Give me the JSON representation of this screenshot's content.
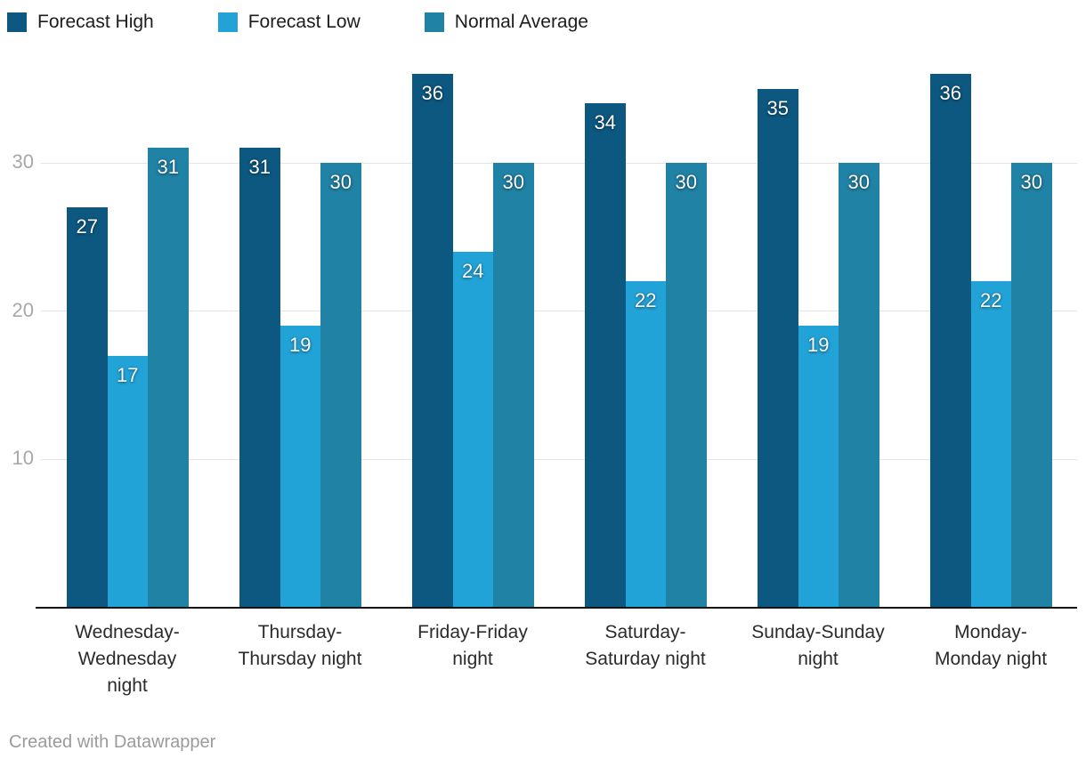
{
  "chart_data": {
    "type": "bar",
    "categories": [
      "Wednesday-\nWednesday\nnight",
      "Thursday-\nThursday night",
      "Friday-Friday\nnight",
      "Saturday-\nSaturday night",
      "Sunday-Sunday\nnight",
      "Monday-\nMonday night"
    ],
    "series": [
      {
        "name": "Forecast High",
        "color": "#0d5880",
        "values": [
          27,
          31,
          36,
          34,
          35,
          36
        ]
      },
      {
        "name": "Forecast Low",
        "color": "#22a3d8",
        "values": [
          17,
          19,
          24,
          22,
          19,
          22
        ]
      },
      {
        "name": "Normal Average",
        "color": "#2082a5",
        "values": [
          31,
          30,
          30,
          30,
          30,
          30
        ]
      }
    ],
    "y_ticks": [
      10,
      20,
      30
    ],
    "ylim": [
      0,
      41
    ],
    "grid": true,
    "legend_position": "top-left",
    "value_labels_shown": true
  },
  "colors": {
    "gridline": "#e4e4e4",
    "axis_line": "#141414",
    "tick_label": "#a8a8a8",
    "category_label": "#2b2b2b",
    "value_label": "#ffffff",
    "legend_label": "#1d1d1d",
    "footer_text": "#9b9b9b"
  },
  "footer": {
    "text": "Created with Datawrapper"
  }
}
